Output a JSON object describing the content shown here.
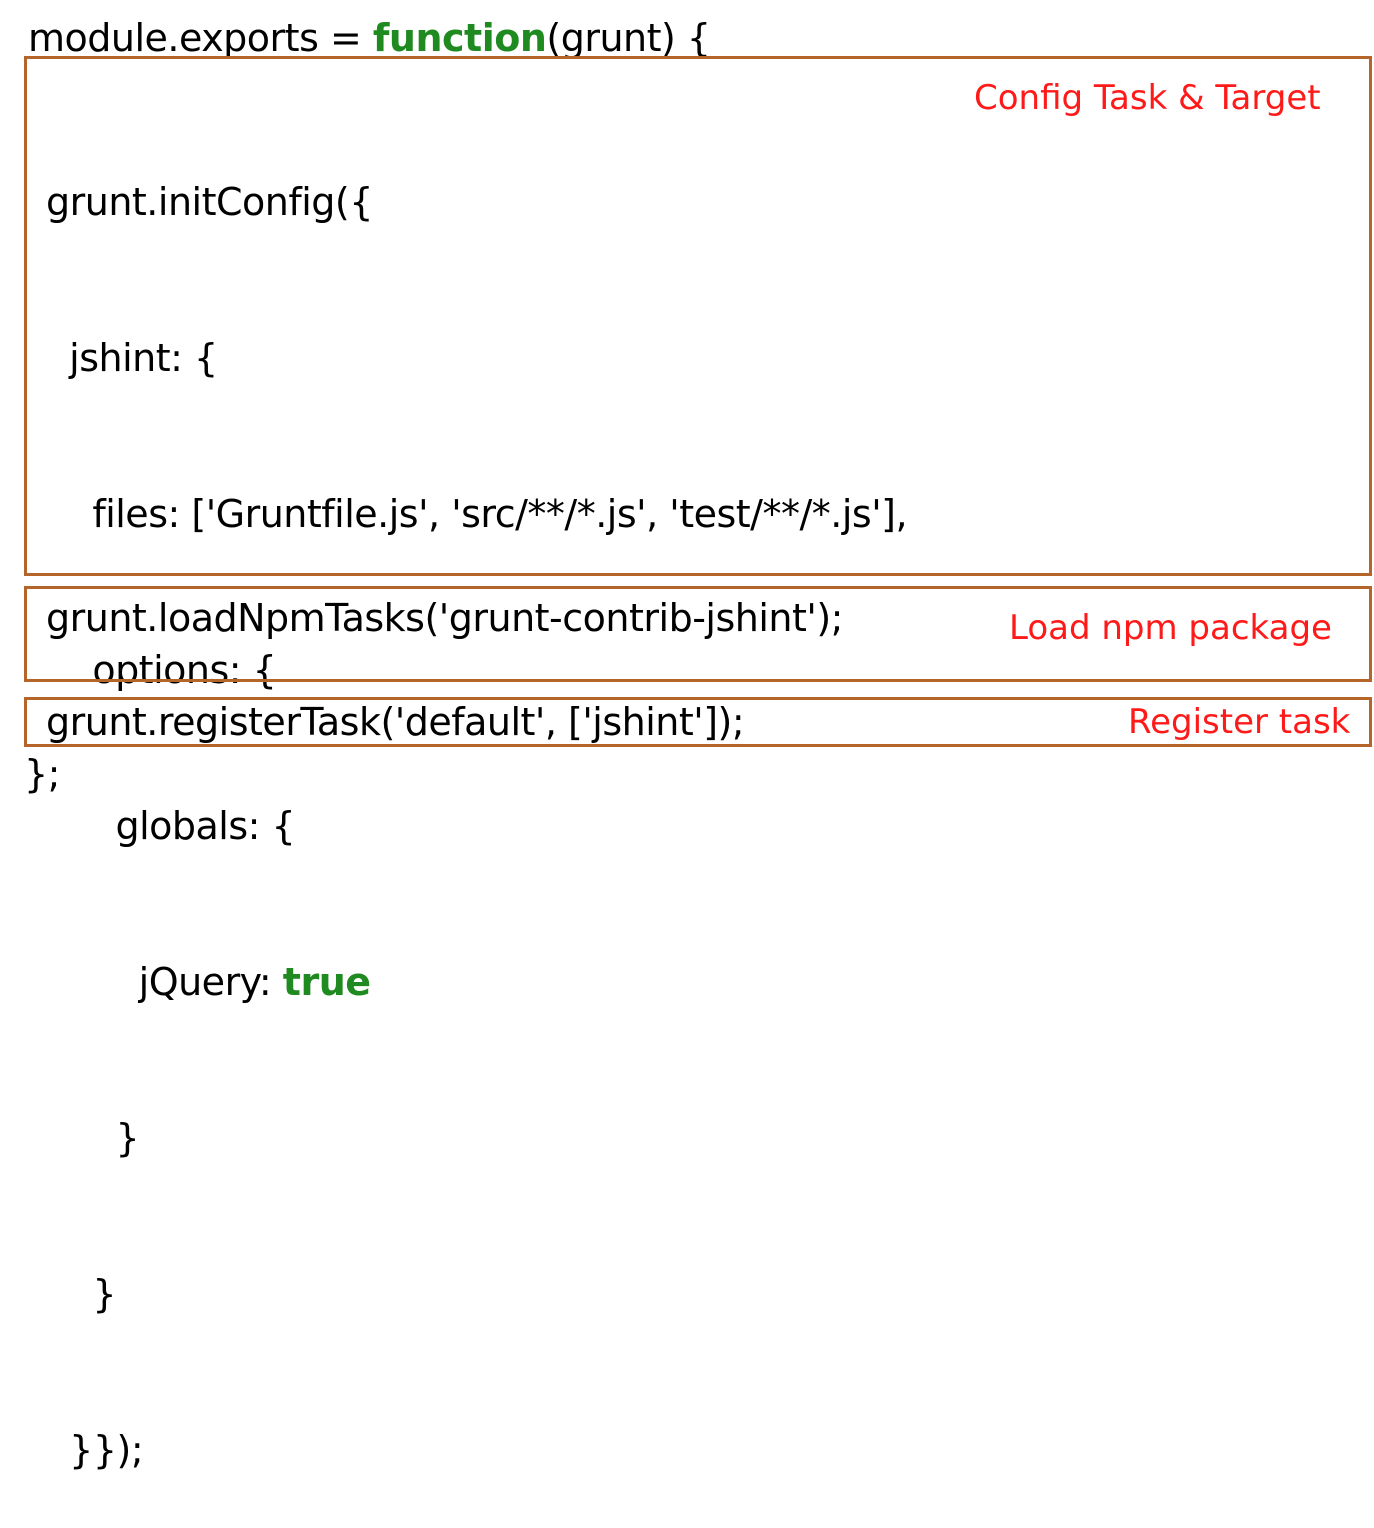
{
  "colors": {
    "keyword": "#1f8a1f",
    "box_border": "#b5652a",
    "annotation": "#ff1a1a"
  },
  "code": {
    "line1_pre": "module.exports = ",
    "line1_kw": "function",
    "line1_post": "(grunt) {",
    "config_lines": [
      "grunt.initConfig({",
      "  jshint: {",
      "    files: ['Gruntfile.js', 'src/**/*.js', 'test/**/*.js'],",
      "    options: {",
      "      globals: {"
    ],
    "jquery_pre": "        jQuery: ",
    "jquery_kw": "true",
    "config_close_lines": [
      "      }",
      "    }",
      "  }});"
    ],
    "load_line": "grunt.loadNpmTasks('grunt-contrib-jshint');",
    "register_line": "grunt.registerTask('default', ['jshint']);",
    "last_line": "};"
  },
  "annotations": {
    "config": "Config Task & Target",
    "load": "Load npm package",
    "register": "Register task"
  }
}
